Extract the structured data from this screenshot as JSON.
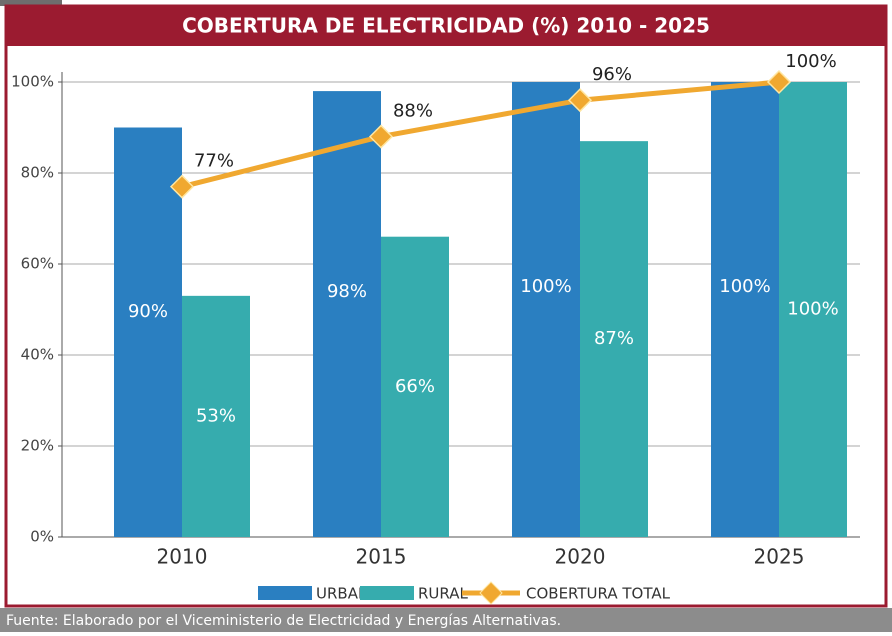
{
  "chart_data": {
    "type": "bar",
    "title": "COBERTURA DE ELECTRICIDAD (%) 2010 - 2025",
    "categories": [
      "2010",
      "2015",
      "2020",
      "2025"
    ],
    "series": [
      {
        "name": "URBANO",
        "color": "#2a7fc1",
        "values": [
          90,
          98,
          100,
          100
        ],
        "value_labels": [
          "90%",
          "98%",
          "100%",
          "100%"
        ]
      },
      {
        "name": "RURAL",
        "color": "#36acae",
        "values": [
          53,
          66,
          87,
          100
        ],
        "value_labels": [
          "53%",
          "66%",
          "87%",
          "100%"
        ]
      },
      {
        "name": "COBERTURA TOTAL",
        "type": "line",
        "color": "#f0a830",
        "values": [
          77,
          88,
          96,
          100
        ],
        "value_labels": [
          "77%",
          "88%",
          "96%",
          "100%"
        ]
      }
    ],
    "ylim": [
      0,
      100
    ],
    "yticks": [
      {
        "value": 0,
        "label": "0%"
      },
      {
        "value": 20,
        "label": "20%"
      },
      {
        "value": 40,
        "label": "40%"
      },
      {
        "value": 60,
        "label": "60%"
      },
      {
        "value": 80,
        "label": "80%"
      },
      {
        "value": 100,
        "label": "100%"
      }
    ],
    "grid": true,
    "legend": "bottom",
    "source": "Fuente: Elaborado por el Viceministerio de Electricidad y Energías Alternativas."
  }
}
